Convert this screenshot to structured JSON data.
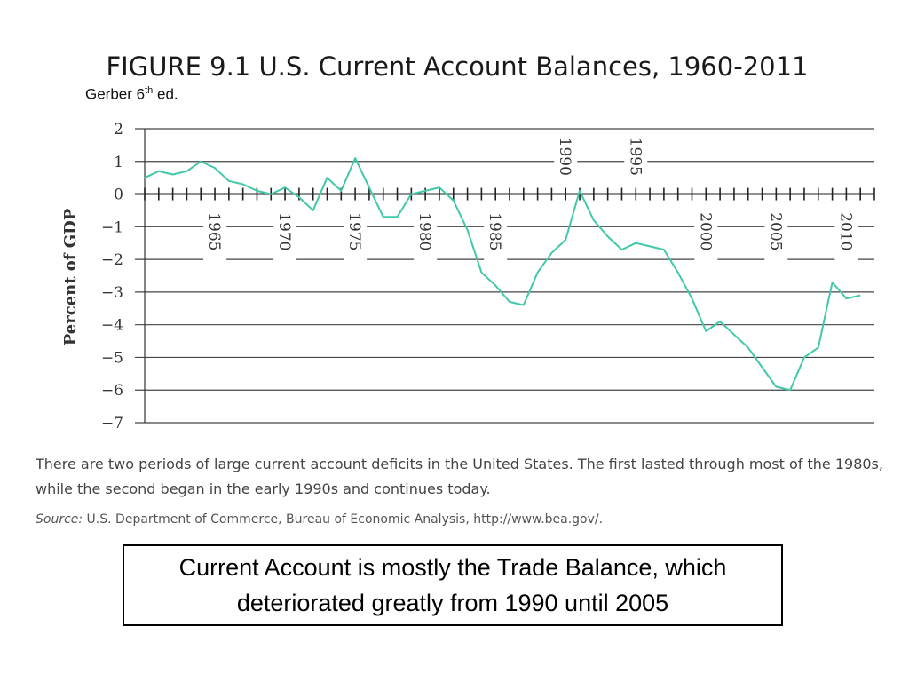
{
  "slide": {
    "title": "FIGURE 9.1  U.S. Current Account Balances, 1960-2011",
    "subtitle_main": "Gerber 6",
    "subtitle_sup": "th",
    "subtitle_tail": " ed.",
    "caption": "There are two periods of large current account deficits in the United States. The first lasted through most of the 1980s, while the second began in the early 1990s and continues today.",
    "source_label": "Source:",
    "source_text": " U.S. Department of Commerce, Bureau of Economic Analysis, http://www.bea.gov/.",
    "note": "Current Account is mostly the Trade Balance, which deteriorated greatly from 1990 until 2005"
  },
  "chart_data": {
    "type": "line",
    "ylabel": "Percent of GDP",
    "ylim": [
      -7,
      2
    ],
    "yticks": [
      2,
      1,
      0,
      -1,
      -2,
      -3,
      -4,
      -5,
      -6,
      -7
    ],
    "grid": true,
    "line_color": "#40c8a8",
    "x_tick_labels": [
      "1965",
      "1970",
      "1975",
      "1980",
      "1985",
      "1990",
      "1995",
      "2000",
      "2005",
      "2010"
    ],
    "x_tick_years": [
      1965,
      1970,
      1975,
      1980,
      1985,
      1990,
      1995,
      2000,
      2005,
      2010
    ],
    "x_tick_label_positions": [
      "below",
      "below",
      "below",
      "below",
      "below",
      "above",
      "above",
      "below",
      "below",
      "below"
    ],
    "series": [
      {
        "x": [
          1960,
          1961,
          1962,
          1963,
          1964,
          1965,
          1966,
          1967,
          1968,
          1969,
          1970,
          1971,
          1972,
          1973,
          1974,
          1975,
          1976,
          1977,
          1978,
          1979,
          1980,
          1981,
          1982,
          1983,
          1984,
          1985,
          1986,
          1987,
          1988,
          1989,
          1990,
          1991,
          1992,
          1993,
          1994,
          1995,
          1996,
          1997,
          1998,
          1999,
          2000,
          2001,
          2002,
          2003,
          2004,
          2005,
          2006,
          2007,
          2008,
          2009,
          2010,
          2011
        ],
        "values": [
          0.5,
          0.7,
          0.6,
          0.7,
          1.0,
          0.8,
          0.4,
          0.3,
          0.1,
          0.0,
          0.2,
          -0.1,
          -0.5,
          0.5,
          0.1,
          1.1,
          0.2,
          -0.7,
          -0.7,
          0.0,
          0.1,
          0.2,
          -0.2,
          -1.1,
          -2.4,
          -2.8,
          -3.3,
          -3.4,
          -2.4,
          -1.8,
          -1.4,
          0.1,
          -0.8,
          -1.3,
          -1.7,
          -1.5,
          -1.6,
          -1.7,
          -2.4,
          -3.2,
          -4.2,
          -3.9,
          -4.3,
          -4.7,
          -5.3,
          -5.9,
          -6.0,
          -5.0,
          -4.7,
          -2.7,
          -3.2,
          -3.1
        ]
      }
    ]
  }
}
